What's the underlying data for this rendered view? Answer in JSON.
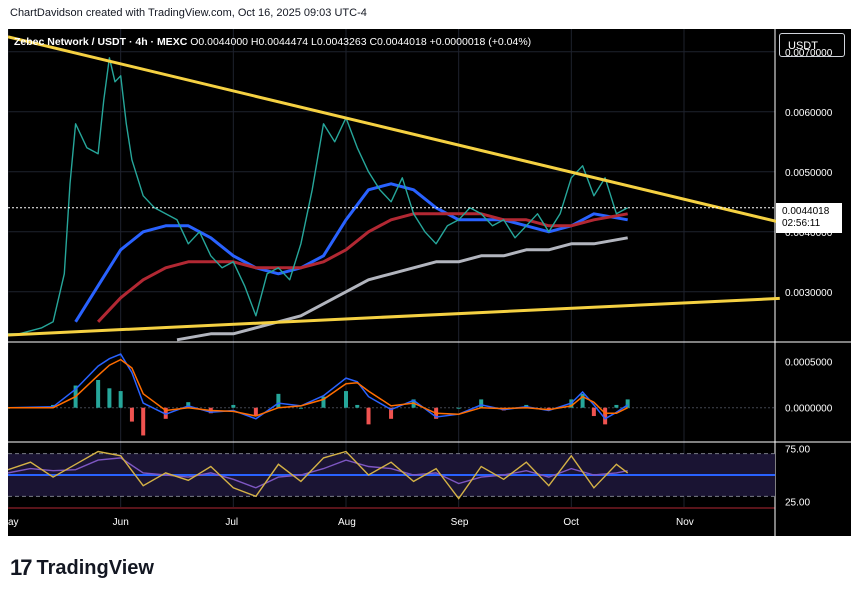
{
  "attribution": "ChartDavidson created with TradingView.com, Oct 16, 2025 09:03 UTC-4",
  "legend": {
    "symbol": "Zebec Network / USDT · 4h · MEXC",
    "ohlc": "O0.0044000 H0.0044474 L0.0043263 C0.0044018 +0.0000018 (+0.04%)"
  },
  "currency_button": "USDT",
  "last_price": "0.0044018",
  "countdown": "02:56:11",
  "footer_brand": "TradingView",
  "colors": {
    "background": "#000000",
    "trendline": "#f5d142",
    "ma_blue": "#2962ff",
    "ma_red": "#b22833",
    "ma_grey": "#b2b5be",
    "macd_line": "#2962ff",
    "signal_line": "#ff6d00",
    "rsi_line": "#d4b246",
    "rsi_ma": "#7e57c2"
  },
  "chart_data": {
    "type": "line",
    "price_axis": {
      "ticks": [
        "0.0070000",
        "0.0060000",
        "0.0050000",
        "0.0040000",
        "0.0030000"
      ],
      "tick_values": [
        0.007,
        0.006,
        0.005,
        0.004,
        0.003
      ],
      "ylim": [
        0.00218,
        0.00738
      ]
    },
    "time_axis": {
      "labels": [
        "ay",
        "Jun",
        "Jul",
        "Aug",
        "Sep",
        "Oct",
        "Nov"
      ],
      "label_index": [
        0,
        1,
        2,
        3,
        4,
        5,
        6
      ]
    },
    "price_series": {
      "x": [
        0,
        0.1,
        0.2,
        0.3,
        0.4,
        0.5,
        0.55,
        0.6,
        0.7,
        0.8,
        0.85,
        0.9,
        0.95,
        1.0,
        1.05,
        1.1,
        1.2,
        1.3,
        1.4,
        1.5,
        1.6,
        1.7,
        1.8,
        1.9,
        2.0,
        2.1,
        2.2,
        2.3,
        2.4,
        2.5,
        2.6,
        2.7,
        2.8,
        2.9,
        3.0,
        3.1,
        3.2,
        3.3,
        3.4,
        3.5,
        3.6,
        3.7,
        3.8,
        3.9,
        4.0,
        4.1,
        4.2,
        4.3,
        4.4,
        4.5,
        4.6,
        4.7,
        4.8,
        4.9,
        5.0,
        5.1,
        5.2,
        5.3,
        5.4,
        5.5
      ],
      "values": [
        0.0023,
        0.0023,
        0.00235,
        0.0024,
        0.0025,
        0.0033,
        0.0048,
        0.0058,
        0.0054,
        0.0053,
        0.0062,
        0.0069,
        0.0065,
        0.0066,
        0.0058,
        0.0052,
        0.0046,
        0.0044,
        0.0043,
        0.0042,
        0.0038,
        0.004,
        0.0036,
        0.0034,
        0.0035,
        0.0031,
        0.0026,
        0.0033,
        0.0034,
        0.0032,
        0.0038,
        0.0047,
        0.0058,
        0.0055,
        0.0059,
        0.0054,
        0.005,
        0.0047,
        0.0045,
        0.0049,
        0.0043,
        0.004,
        0.0038,
        0.0041,
        0.0042,
        0.0044,
        0.0043,
        0.0041,
        0.0042,
        0.0039,
        0.0041,
        0.0043,
        0.004,
        0.0043,
        0.0049,
        0.0051,
        0.0046,
        0.0049,
        0.0043,
        0.0044
      ]
    },
    "moving_averages": [
      {
        "color": "#2962ff",
        "x": [
          0.6,
          0.8,
          1.0,
          1.2,
          1.4,
          1.6,
          1.8,
          2.0,
          2.2,
          2.4,
          2.6,
          2.8,
          3.0,
          3.2,
          3.4,
          3.6,
          3.8,
          4.0,
          4.2,
          4.4,
          4.6,
          4.8,
          5.0,
          5.2,
          5.5
        ],
        "values": [
          0.0025,
          0.0031,
          0.0037,
          0.004,
          0.0041,
          0.0041,
          0.0039,
          0.0036,
          0.0034,
          0.0033,
          0.0034,
          0.0036,
          0.0042,
          0.0047,
          0.0048,
          0.0047,
          0.0044,
          0.0042,
          0.0042,
          0.0042,
          0.0041,
          0.004,
          0.0041,
          0.0043,
          0.0042
        ]
      },
      {
        "color": "#b22833",
        "x": [
          0.8,
          1.0,
          1.2,
          1.4,
          1.6,
          1.8,
          2.0,
          2.2,
          2.4,
          2.6,
          2.8,
          3.0,
          3.2,
          3.4,
          3.6,
          3.8,
          4.0,
          4.2,
          4.4,
          4.6,
          4.8,
          5.0,
          5.2,
          5.5
        ],
        "values": [
          0.0025,
          0.0029,
          0.0032,
          0.0034,
          0.0035,
          0.0035,
          0.0035,
          0.0034,
          0.0034,
          0.0034,
          0.0035,
          0.0037,
          0.004,
          0.0042,
          0.0043,
          0.0043,
          0.0043,
          0.0043,
          0.0042,
          0.0042,
          0.0041,
          0.0041,
          0.0042,
          0.0043
        ]
      },
      {
        "color": "#b2b5be",
        "x": [
          1.5,
          1.8,
          2.0,
          2.2,
          2.4,
          2.6,
          2.8,
          3.0,
          3.2,
          3.4,
          3.6,
          3.8,
          4.0,
          4.2,
          4.4,
          4.6,
          4.8,
          5.0,
          5.2,
          5.5
        ],
        "values": [
          0.0022,
          0.0023,
          0.0023,
          0.0024,
          0.0025,
          0.0026,
          0.0028,
          0.003,
          0.0032,
          0.0033,
          0.0034,
          0.0035,
          0.0035,
          0.0036,
          0.0036,
          0.0037,
          0.0037,
          0.0038,
          0.0038,
          0.0039
        ]
      }
    ],
    "trendlines": [
      {
        "from": [
          0.0,
          0.00725
        ],
        "to": [
          6.85,
          0.00416
        ]
      },
      {
        "from": [
          0.0,
          0.00228
        ],
        "to": [
          6.85,
          0.00289
        ]
      }
    ],
    "macd_panel": {
      "ticks": [
        "0.0005000",
        "0.0000000"
      ],
      "tick_values": [
        0.0005,
        0.0
      ],
      "ylim": [
        -0.00036,
        0.0007
      ],
      "macd": {
        "x": [
          0,
          0.4,
          0.6,
          0.8,
          0.9,
          1.0,
          1.1,
          1.2,
          1.4,
          1.6,
          1.8,
          2.0,
          2.2,
          2.4,
          2.6,
          2.8,
          3.0,
          3.1,
          3.2,
          3.4,
          3.6,
          3.8,
          4.0,
          4.2,
          4.4,
          4.6,
          4.8,
          5.0,
          5.1,
          5.2,
          5.3,
          5.4,
          5.5
        ],
        "values": [
          0.0,
          1e-05,
          0.0002,
          0.00045,
          0.00053,
          0.00058,
          0.00038,
          5e-05,
          -7e-05,
          2e-05,
          -5e-05,
          -3e-05,
          -0.00012,
          5e-05,
          2e-05,
          0.00013,
          0.00032,
          0.00028,
          0.00012,
          -2e-05,
          8e-05,
          -0.0001,
          -7e-05,
          3e-05,
          -2e-05,
          1e-05,
          -3e-05,
          5e-05,
          0.00017,
          3e-05,
          -0.00012,
          -5e-05,
          3e-05
        ]
      },
      "signal": {
        "x": [
          0,
          0.4,
          0.6,
          0.8,
          0.9,
          1.0,
          1.1,
          1.2,
          1.4,
          1.6,
          1.8,
          2.0,
          2.2,
          2.4,
          2.6,
          2.8,
          3.0,
          3.1,
          3.2,
          3.4,
          3.6,
          3.8,
          4.0,
          4.2,
          4.4,
          4.6,
          4.8,
          5.0,
          5.1,
          5.2,
          5.3,
          5.4,
          5.5
        ],
        "values": [
          0.0,
          0.0,
          0.00012,
          0.00035,
          0.00046,
          0.00052,
          0.00043,
          0.00015,
          -3e-05,
          0.0,
          -3e-05,
          -4e-05,
          -9e-05,
          0.0,
          2e-05,
          9e-05,
          0.00026,
          0.00027,
          0.00018,
          2e-05,
          5e-05,
          -6e-05,
          -7e-05,
          0.0,
          -1e-05,
          0.0,
          -2e-05,
          2e-05,
          0.00012,
          6e-05,
          -6e-05,
          -6e-05,
          0.0
        ]
      }
    },
    "rsi_panel": {
      "ticks": [
        "75.00",
        "25.00"
      ],
      "tick_values": [
        75,
        25
      ],
      "ylim": [
        20,
        80
      ],
      "band": [
        30,
        70
      ],
      "rsi": {
        "x": [
          0,
          0.2,
          0.4,
          0.6,
          0.8,
          1.0,
          1.2,
          1.4,
          1.6,
          1.8,
          2.0,
          2.2,
          2.4,
          2.6,
          2.8,
          3.0,
          3.2,
          3.4,
          3.6,
          3.8,
          4.0,
          4.2,
          4.4,
          4.6,
          4.8,
          5.0,
          5.2,
          5.4,
          5.5
        ],
        "values": [
          55,
          62,
          48,
          60,
          72,
          68,
          40,
          52,
          45,
          58,
          38,
          30,
          60,
          44,
          66,
          72,
          50,
          62,
          44,
          56,
          28,
          58,
          46,
          62,
          40,
          68,
          38,
          60,
          52
        ]
      },
      "rsi_ma": {
        "x": [
          0,
          0.2,
          0.4,
          0.6,
          0.8,
          1.0,
          1.2,
          1.4,
          1.6,
          1.8,
          2.0,
          2.2,
          2.4,
          2.6,
          2.8,
          3.0,
          3.2,
          3.4,
          3.6,
          3.8,
          4.0,
          4.2,
          4.4,
          4.6,
          4.8,
          5.0,
          5.2,
          5.4,
          5.5
        ],
        "values": [
          52,
          56,
          54,
          55,
          64,
          66,
          52,
          50,
          48,
          52,
          46,
          38,
          48,
          50,
          56,
          64,
          58,
          56,
          50,
          52,
          42,
          48,
          50,
          54,
          48,
          56,
          50,
          52,
          54
        ]
      }
    },
    "grid": true
  }
}
